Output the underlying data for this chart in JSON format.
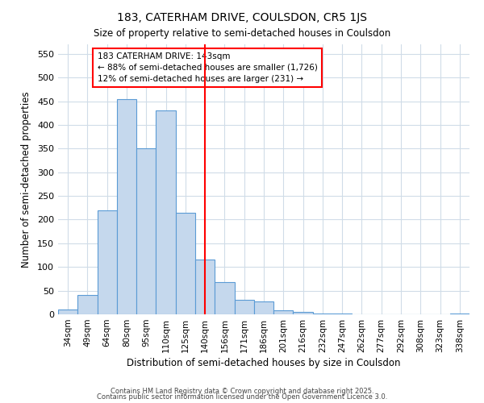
{
  "title": "183, CATERHAM DRIVE, COULSDON, CR5 1JS",
  "subtitle": "Size of property relative to semi-detached houses in Coulsdon",
  "xlabel": "Distribution of semi-detached houses by size in Coulsdon",
  "ylabel": "Number of semi-detached properties",
  "bar_labels": [
    "34sqm",
    "49sqm",
    "64sqm",
    "80sqm",
    "95sqm",
    "110sqm",
    "125sqm",
    "140sqm",
    "156sqm",
    "171sqm",
    "186sqm",
    "201sqm",
    "216sqm",
    "232sqm",
    "247sqm",
    "262sqm",
    "277sqm",
    "292sqm",
    "308sqm",
    "323sqm",
    "338sqm"
  ],
  "bar_values": [
    10,
    40,
    220,
    455,
    350,
    430,
    215,
    115,
    68,
    30,
    27,
    8,
    5,
    2,
    1,
    0,
    0,
    0,
    0,
    0,
    2
  ],
  "bar_color": "#c5d8ed",
  "bar_edge_color": "#5b9bd5",
  "property_line_x_label": "140sqm",
  "pct_smaller": 88,
  "n_smaller": 1726,
  "pct_larger": 12,
  "n_larger": 231,
  "annotation_label": "183 CATERHAM DRIVE: 143sqm",
  "background_color": "#ffffff",
  "plot_bg_color": "#ffffff",
  "grid_color": "#d0dce8",
  "ylim": [
    0,
    570
  ],
  "yticks": [
    0,
    50,
    100,
    150,
    200,
    250,
    300,
    350,
    400,
    450,
    500,
    550
  ],
  "footer1": "Contains HM Land Registry data © Crown copyright and database right 2025.",
  "footer2": "Contains public sector information licensed under the Open Government Licence 3.0."
}
